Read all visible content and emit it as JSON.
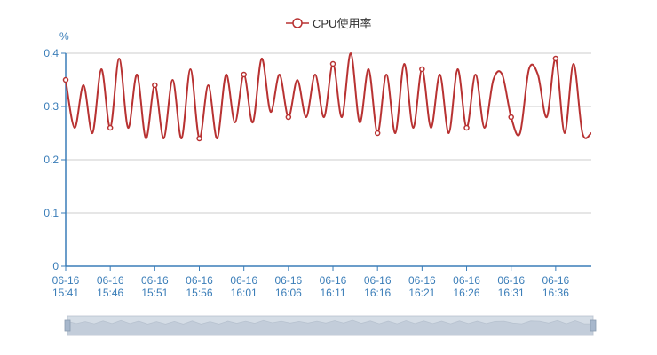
{
  "chart_data": {
    "type": "line",
    "title": "",
    "xlabel": "",
    "ylabel": "%",
    "ylim": [
      0,
      0.4
    ],
    "yticks": [
      "0",
      "0.1",
      "0.2",
      "0.3",
      "0.4"
    ],
    "grid": true,
    "legend": "top-center",
    "smooth": true,
    "x_tick_labels": [
      [
        "06-16",
        "15:41"
      ],
      [
        "06-16",
        "15:46"
      ],
      [
        "06-16",
        "15:51"
      ],
      [
        "06-16",
        "15:56"
      ],
      [
        "06-16",
        "16:01"
      ],
      [
        "06-16",
        "16:06"
      ],
      [
        "06-16",
        "16:11"
      ],
      [
        "06-16",
        "16:16"
      ],
      [
        "06-16",
        "16:21"
      ],
      [
        "06-16",
        "16:26"
      ],
      [
        "06-16",
        "16:31"
      ],
      [
        "06-16",
        "16:36"
      ]
    ],
    "x": [
      "15:41",
      "15:42",
      "15:43",
      "15:44",
      "15:45",
      "15:46",
      "15:47",
      "15:48",
      "15:49",
      "15:50",
      "15:51",
      "15:52",
      "15:53",
      "15:54",
      "15:55",
      "15:56",
      "15:57",
      "15:58",
      "15:59",
      "16:00",
      "16:01",
      "16:02",
      "16:03",
      "16:04",
      "16:05",
      "16:06",
      "16:07",
      "16:08",
      "16:09",
      "16:10",
      "16:11",
      "16:12",
      "16:13",
      "16:14",
      "16:15",
      "16:16",
      "16:17",
      "16:18",
      "16:19",
      "16:20",
      "16:21",
      "16:22",
      "16:23",
      "16:24",
      "16:25",
      "16:26",
      "16:27",
      "16:28",
      "16:29",
      "16:30",
      "16:31",
      "16:32",
      "16:33",
      "16:34",
      "16:35",
      "16:36",
      "16:37",
      "16:38",
      "16:39",
      "16:40"
    ],
    "series": [
      {
        "name": "CPU使用率",
        "color": "#b83232",
        "values": [
          0.35,
          0.26,
          0.34,
          0.25,
          0.37,
          0.26,
          0.39,
          0.26,
          0.36,
          0.24,
          0.34,
          0.24,
          0.35,
          0.24,
          0.37,
          0.24,
          0.34,
          0.24,
          0.36,
          0.27,
          0.36,
          0.27,
          0.39,
          0.29,
          0.36,
          0.28,
          0.35,
          0.28,
          0.36,
          0.28,
          0.38,
          0.28,
          0.4,
          0.27,
          0.37,
          0.25,
          0.36,
          0.25,
          0.38,
          0.26,
          0.37,
          0.26,
          0.36,
          0.25,
          0.37,
          0.26,
          0.36,
          0.26,
          0.35,
          0.36,
          0.28,
          0.25,
          0.37,
          0.36,
          0.28,
          0.39,
          0.25,
          0.38,
          0.25,
          0.25
        ],
        "marked_points": [
          0,
          5,
          10,
          15,
          20,
          25,
          30,
          35,
          40,
          45,
          50,
          55
        ]
      }
    ],
    "dataZoom": {
      "start": 0,
      "end": 100
    }
  }
}
